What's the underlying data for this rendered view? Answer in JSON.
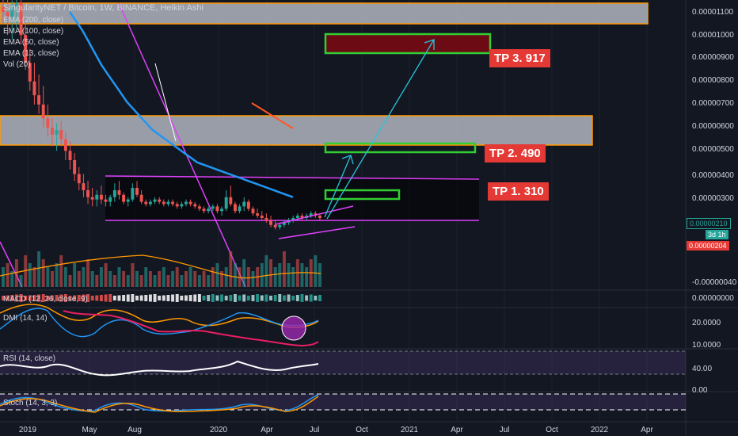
{
  "header": {
    "title": "SingularityNET / Bitcoin, 1W, BINANCE, Heikin Ashi",
    "indicators": [
      "EMA (200, close)",
      "EMA (100, close)",
      "EMA (50, close)",
      "EMA (13, close)",
      "Vol (20)"
    ]
  },
  "targets": [
    {
      "label": "TP 1. 310"
    },
    {
      "label": "TP 2. 490"
    },
    {
      "label": "TP 3. 917"
    }
  ],
  "price_tags": {
    "current": "0.00000210",
    "countdown": "3d 1h",
    "ema": "0.00000204"
  },
  "panes": {
    "macd": {
      "label": "MACD (12, 26, close, 9)",
      "axis": [
        "0.00000000"
      ]
    },
    "dmi": {
      "label": "DMI (14, 14)",
      "axis": [
        "20.0000",
        "10.0000"
      ]
    },
    "rsi": {
      "label": "RSI (14, close)",
      "axis": [
        "40.00",
        "0.00"
      ]
    },
    "stoch": {
      "label": "Stoch (14, 3, 3)"
    }
  },
  "colors": {
    "bg": "#131722",
    "up": "#26a69a",
    "down": "#ef5350",
    "ema200": "#ffffff",
    "ema100": "#e91e63",
    "ema50": "#2196f3",
    "ema13": "#ff5722",
    "target_border": "#32cd32",
    "target3_fill": "#6d0b14",
    "zone_fill": "#b2b5be",
    "zone_border": "#ff9800",
    "magenta": "#e040fb",
    "arrow": "#26c6da",
    "tp_bg": "#e53935"
  },
  "chart_data": {
    "type": "candlestick",
    "title": "SingularityNET / Bitcoin, 1W, BINANCE, Heikin Ashi",
    "x_ticks": [
      "2019",
      "May",
      "Aug",
      "2020",
      "Apr",
      "Jul",
      "Oct",
      "2021",
      "Apr",
      "Jul",
      "Oct",
      "2022",
      "Apr"
    ],
    "y_ticks": [
      "0.00001100",
      "0.00001000",
      "0.00000900",
      "0.00000800",
      "0.00000700",
      "0.00000600",
      "0.00000500",
      "0.00000400",
      "0.00000300",
      "0.00000210",
      "-0.00000040"
    ],
    "ylim": [
      4e-07,
      1.1e-06
    ],
    "last_price": 2.1e-06,
    "ema_value": 2.04e-06,
    "targets": [
      3.1e-06,
      4.9e-06,
      9.17e-06
    ],
    "candles": [
      {
        "o": 1.12e-05,
        "h": 1.16e-05,
        "l": 1.05e-05,
        "c": 1.1e-05
      },
      {
        "o": 1.1e-05,
        "h": 1.18e-05,
        "l": 1e-05,
        "c": 1.08e-05
      },
      {
        "o": 1.08e-05,
        "h": 1.15e-05,
        "l": 9.8e-06,
        "c": 1.12e-05
      },
      {
        "o": 1.12e-05,
        "h": 1.17e-05,
        "l": 1.03e-05,
        "c": 1.14e-05
      },
      {
        "o": 1.14e-05,
        "h": 1.16e-05,
        "l": 9.6e-06,
        "c": 1e-05
      },
      {
        "o": 1e-05,
        "h": 1.06e-05,
        "l": 8.5e-06,
        "c": 8.8e-06
      },
      {
        "o": 8.8e-06,
        "h": 9.4e-06,
        "l": 7.6e-06,
        "c": 8e-06
      },
      {
        "o": 8e-06,
        "h": 8.8e-06,
        "l": 7e-06,
        "c": 7.4e-06
      },
      {
        "o": 7.4e-06,
        "h": 8.3e-06,
        "l": 6.6e-06,
        "c": 7e-06
      },
      {
        "o": 7e-06,
        "h": 7.8e-06,
        "l": 6e-06,
        "c": 6.4e-06
      },
      {
        "o": 6.4e-06,
        "h": 7e-06,
        "l": 5.6e-06,
        "c": 6e-06
      },
      {
        "o": 6e-06,
        "h": 6.4e-06,
        "l": 5.2e-06,
        "c": 5.7e-06
      },
      {
        "o": 5.7e-06,
        "h": 6.2e-06,
        "l": 5e-06,
        "c": 5.9e-06
      },
      {
        "o": 5.9e-06,
        "h": 6.3e-06,
        "l": 5.2e-06,
        "c": 5.5e-06
      },
      {
        "o": 5.5e-06,
        "h": 5.8e-06,
        "l": 4.6e-06,
        "c": 5e-06
      },
      {
        "o": 5e-06,
        "h": 5.4e-06,
        "l": 4.2e-06,
        "c": 4.6e-06
      },
      {
        "o": 4.6e-06,
        "h": 4.9e-06,
        "l": 3.7e-06,
        "c": 4e-06
      },
      {
        "o": 4e-06,
        "h": 4.3e-06,
        "l": 3.3e-06,
        "c": 3.6e-06
      },
      {
        "o": 3.6e-06,
        "h": 4e-06,
        "l": 3e-06,
        "c": 3.3e-06
      },
      {
        "o": 3.3e-06,
        "h": 3.7e-06,
        "l": 2.7e-06,
        "c": 3e-06
      },
      {
        "o": 3e-06,
        "h": 3.4e-06,
        "l": 2.6e-06,
        "c": 2.9e-06
      },
      {
        "o": 2.9e-06,
        "h": 3.3e-06,
        "l": 2.6e-06,
        "c": 3.1e-06
      },
      {
        "o": 3.1e-06,
        "h": 3.5e-06,
        "l": 2.7e-06,
        "c": 2.9e-06
      },
      {
        "o": 2.9e-06,
        "h": 3.1e-06,
        "l": 2.6e-06,
        "c": 2.8e-06
      },
      {
        "o": 2.8e-06,
        "h": 3.1e-06,
        "l": 2.6e-06,
        "c": 3e-06
      },
      {
        "o": 3e-06,
        "h": 3.6e-06,
        "l": 2.8e-06,
        "c": 3.3e-06
      },
      {
        "o": 3.3e-06,
        "h": 3.7e-06,
        "l": 2.9e-06,
        "c": 3.1e-06
      },
      {
        "o": 3.1e-06,
        "h": 3.2e-06,
        "l": 2.7e-06,
        "c": 2.8e-06
      },
      {
        "o": 2.8e-06,
        "h": 3e-06,
        "l": 2.6e-06,
        "c": 2.9e-06
      },
      {
        "o": 2.9e-06,
        "h": 3.6e-06,
        "l": 2.8e-06,
        "c": 3.4e-06
      },
      {
        "o": 3.4e-06,
        "h": 3.7e-06,
        "l": 3e-06,
        "c": 3.1e-06
      },
      {
        "o": 3.1e-06,
        "h": 3.3e-06,
        "l": 2.7e-06,
        "c": 2.8e-06
      },
      {
        "o": 2.8e-06,
        "h": 2.9e-06,
        "l": 2.6e-06,
        "c": 2.7e-06
      },
      {
        "o": 2.7e-06,
        "h": 2.9e-06,
        "l": 2.6e-06,
        "c": 2.8e-06
      },
      {
        "o": 2.8e-06,
        "h": 3e-06,
        "l": 2.7e-06,
        "c": 2.9e-06
      },
      {
        "o": 2.9e-06,
        "h": 3e-06,
        "l": 2.7e-06,
        "c": 2.8e-06
      },
      {
        "o": 2.8e-06,
        "h": 2.9e-06,
        "l": 2.6e-06,
        "c": 2.7e-06
      },
      {
        "o": 2.7e-06,
        "h": 2.9e-06,
        "l": 2.6e-06,
        "c": 2.8e-06
      },
      {
        "o": 2.8e-06,
        "h": 2.9e-06,
        "l": 2.6e-06,
        "c": 2.7e-06
      },
      {
        "o": 2.7e-06,
        "h": 2.8e-06,
        "l": 2.5e-06,
        "c": 2.6e-06
      },
      {
        "o": 2.6e-06,
        "h": 2.8e-06,
        "l": 2.5e-06,
        "c": 2.7e-06
      },
      {
        "o": 2.7e-06,
        "h": 2.9e-06,
        "l": 2.6e-06,
        "c": 2.8e-06
      },
      {
        "o": 2.8e-06,
        "h": 2.9e-06,
        "l": 2.6e-06,
        "c": 2.7e-06
      },
      {
        "o": 2.7e-06,
        "h": 2.8e-06,
        "l": 2.5e-06,
        "c": 2.6e-06
      },
      {
        "o": 2.6e-06,
        "h": 2.7e-06,
        "l": 2.4e-06,
        "c": 2.5e-06
      },
      {
        "o": 2.5e-06,
        "h": 2.6e-06,
        "l": 2.3e-06,
        "c": 2.4e-06
      },
      {
        "o": 2.4e-06,
        "h": 2.6e-06,
        "l": 2.3e-06,
        "c": 2.5e-06
      },
      {
        "o": 2.5e-06,
        "h": 2.7e-06,
        "l": 2.4e-06,
        "c": 2.6e-06
      },
      {
        "o": 2.6e-06,
        "h": 2.7e-06,
        "l": 2.3e-06,
        "c": 2.4e-06
      },
      {
        "o": 2.4e-06,
        "h": 2.6e-06,
        "l": 2.2e-06,
        "c": 2.5e-06
      },
      {
        "o": 2.5e-06,
        "h": 3.3e-06,
        "l": 2.4e-06,
        "c": 3e-06
      },
      {
        "o": 3e-06,
        "h": 3.5e-06,
        "l": 2.6e-06,
        "c": 2.7e-06
      },
      {
        "o": 2.7e-06,
        "h": 2.8e-06,
        "l": 2.3e-06,
        "c": 2.4e-06
      },
      {
        "o": 2.4e-06,
        "h": 2.7e-06,
        "l": 2.3e-06,
        "c": 2.6e-06
      },
      {
        "o": 2.6e-06,
        "h": 3e-06,
        "l": 2.4e-06,
        "c": 2.8e-06
      },
      {
        "o": 2.8e-06,
        "h": 2.9e-06,
        "l": 2.4e-06,
        "c": 2.5e-06
      },
      {
        "o": 2.5e-06,
        "h": 2.6e-06,
        "l": 2.2e-06,
        "c": 2.3e-06
      },
      {
        "o": 2.3e-06,
        "h": 2.5e-06,
        "l": 2.1e-06,
        "c": 2.2e-06
      },
      {
        "o": 2.2e-06,
        "h": 2.4e-06,
        "l": 2e-06,
        "c": 2.1e-06
      },
      {
        "o": 2.1e-06,
        "h": 2.3e-06,
        "l": 1.9e-06,
        "c": 2e-06
      },
      {
        "o": 2e-06,
        "h": 2.2e-06,
        "l": 1.7e-06,
        "c": 1.8e-06
      },
      {
        "o": 1.8e-06,
        "h": 2e-06,
        "l": 1.6e-06,
        "c": 1.7e-06
      },
      {
        "o": 1.7e-06,
        "h": 1.9e-06,
        "l": 1.6e-06,
        "c": 1.8e-06
      },
      {
        "o": 1.8e-06,
        "h": 2e-06,
        "l": 1.7e-06,
        "c": 1.9e-06
      },
      {
        "o": 1.9e-06,
        "h": 2.1e-06,
        "l": 1.8e-06,
        "c": 2e-06
      },
      {
        "o": 2e-06,
        "h": 2.2e-06,
        "l": 1.9e-06,
        "c": 2.1e-06
      },
      {
        "o": 2.1e-06,
        "h": 2.3e-06,
        "l": 2e-06,
        "c": 2.2e-06
      },
      {
        "o": 2.2e-06,
        "h": 2.3e-06,
        "l": 2e-06,
        "c": 2.1e-06
      },
      {
        "o": 2.1e-06,
        "h": 2.3e-06,
        "l": 2e-06,
        "c": 2.2e-06
      },
      {
        "o": 2.2e-06,
        "h": 2.4e-06,
        "l": 2.1e-06,
        "c": 2.3e-06
      },
      {
        "o": 2.3e-06,
        "h": 2.4e-06,
        "l": 2.1e-06,
        "c": 2.2e-06
      },
      {
        "o": 2.2e-06,
        "h": 2.3e-06,
        "l": 2e-06,
        "c": 2.1e-06
      }
    ],
    "ema50": [
      1.1e-05,
      1.06e-05,
      1.02e-05,
      9.7e-06,
      9.2e-06,
      8.7e-06,
      8.3e-06,
      7.9e-06,
      7.5e-06,
      7.1e-06,
      6.8e-06,
      6.5e-06,
      6.2e-06,
      5.9e-06,
      5.7e-06,
      5.5e-06,
      5.3e-06,
      5.1e-06,
      4.9e-06,
      4.7e-06,
      4.5e-06,
      4.4e-06,
      4.3e-06,
      4.2e-06,
      4.1e-06,
      4e-06,
      3.9e-06,
      3.8e-06,
      3.7e-06,
      3.6e-06,
      3.5e-06,
      3.4e-06,
      3.3e-06,
      3.2e-06,
      3.1e-06,
      3e-06
    ],
    "volume": [
      0.5,
      0.6,
      0.4,
      0.7,
      0.3,
      0.8,
      0.6,
      0.5,
      0.9,
      0.7,
      0.5,
      0.4,
      0.6,
      0.8,
      0.5,
      0.3,
      0.6,
      0.4,
      0.5,
      0.7,
      0.4,
      0.3,
      0.5,
      0.6,
      0.4,
      0.3,
      0.5,
      0.4,
      0.3,
      0.6,
      0.4,
      0.3,
      0.5,
      0.4,
      0.3,
      0.4,
      0.5,
      0.3,
      0.4,
      0.5,
      0.3,
      0.4,
      0.5,
      0.4,
      0.3,
      0.4,
      0.3,
      0.5,
      0.6,
      0.4,
      0.5,
      0.9,
      0.6,
      0.5,
      0.7,
      0.5,
      0.4,
      0.5,
      0.6,
      0.8,
      0.7,
      0.5,
      0.6,
      0.9,
      0.6,
      0.5,
      0.7,
      0.6,
      0.5,
      0.7,
      0.8,
      0.6
    ]
  }
}
